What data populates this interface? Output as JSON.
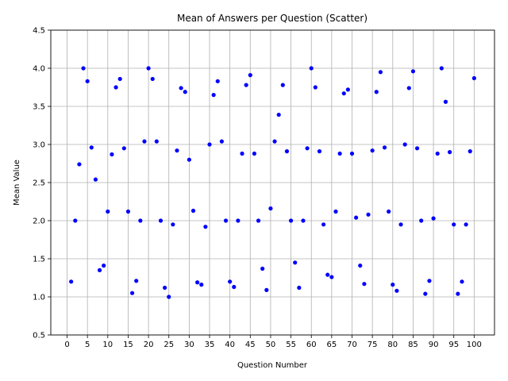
{
  "chart_data": {
    "type": "scatter",
    "title": "Mean of Answers per Question (Scatter)",
    "xlabel": "Question Number",
    "ylabel": "Mean Value",
    "xlim": [
      -4,
      105
    ],
    "ylim": [
      0.5,
      4.5
    ],
    "xticks": [
      0,
      5,
      10,
      15,
      20,
      25,
      30,
      35,
      40,
      45,
      50,
      55,
      60,
      65,
      70,
      75,
      80,
      85,
      90,
      95,
      100
    ],
    "yticks": [
      0.5,
      1.0,
      1.5,
      2.0,
      2.5,
      3.0,
      3.5,
      4.0,
      4.5
    ],
    "ytick_labels": [
      "0.5",
      "1.0",
      "1.5",
      "2.0",
      "2.5",
      "3.0",
      "3.5",
      "4.0",
      "4.5"
    ],
    "grid": true,
    "marker_color": "#0000ff",
    "x": [
      1,
      2,
      3,
      4,
      5,
      6,
      7,
      8,
      9,
      10,
      11,
      12,
      13,
      14,
      15,
      16,
      17,
      18,
      19,
      20,
      21,
      22,
      23,
      24,
      25,
      26,
      27,
      28,
      29,
      30,
      31,
      32,
      33,
      34,
      35,
      36,
      37,
      38,
      39,
      40,
      41,
      42,
      43,
      44,
      45,
      46,
      47,
      48,
      49,
      50,
      51,
      52,
      53,
      54,
      55,
      56,
      57,
      58,
      59,
      60,
      61,
      62,
      63,
      64,
      65,
      66,
      67,
      68,
      69,
      70,
      71,
      72,
      73,
      74,
      75,
      76,
      77,
      78,
      79,
      80,
      81,
      82,
      83,
      84,
      85,
      86,
      87,
      88,
      89,
      90,
      91,
      92,
      93,
      94,
      95,
      96,
      97,
      98,
      99,
      100
    ],
    "y": [
      1.2,
      2.0,
      2.74,
      4.0,
      3.83,
      2.96,
      2.54,
      1.35,
      1.41,
      2.12,
      2.87,
      3.75,
      3.86,
      2.95,
      2.12,
      1.05,
      1.21,
      2.0,
      3.04,
      4.0,
      3.86,
      3.04,
      2.0,
      1.12,
      1.0,
      1.95,
      2.92,
      3.74,
      3.69,
      2.8,
      2.13,
      1.19,
      1.16,
      1.92,
      3.0,
      3.65,
      3.83,
      3.04,
      2.0,
      1.2,
      1.13,
      2.0,
      2.88,
      3.78,
      3.91,
      2.88,
      2.0,
      1.37,
      1.09,
      2.16,
      3.04,
      3.39,
      3.78,
      2.91,
      2.0,
      1.45,
      1.12,
      2.0,
      2.95,
      4.0,
      3.75,
      2.91,
      1.95,
      1.29,
      1.26,
      2.12,
      2.88,
      3.67,
      3.72,
      2.88,
      2.04,
      1.41,
      1.17,
      2.08,
      2.92,
      3.69,
      3.95,
      2.96,
      2.12,
      1.16,
      1.08,
      1.95,
      3.0,
      3.74,
      3.96,
      2.95,
      2.0,
      1.04,
      1.21,
      2.03,
      2.88,
      4.0,
      3.56,
      2.9,
      1.95,
      1.04,
      1.2,
      1.95,
      2.91,
      3.87
    ]
  }
}
